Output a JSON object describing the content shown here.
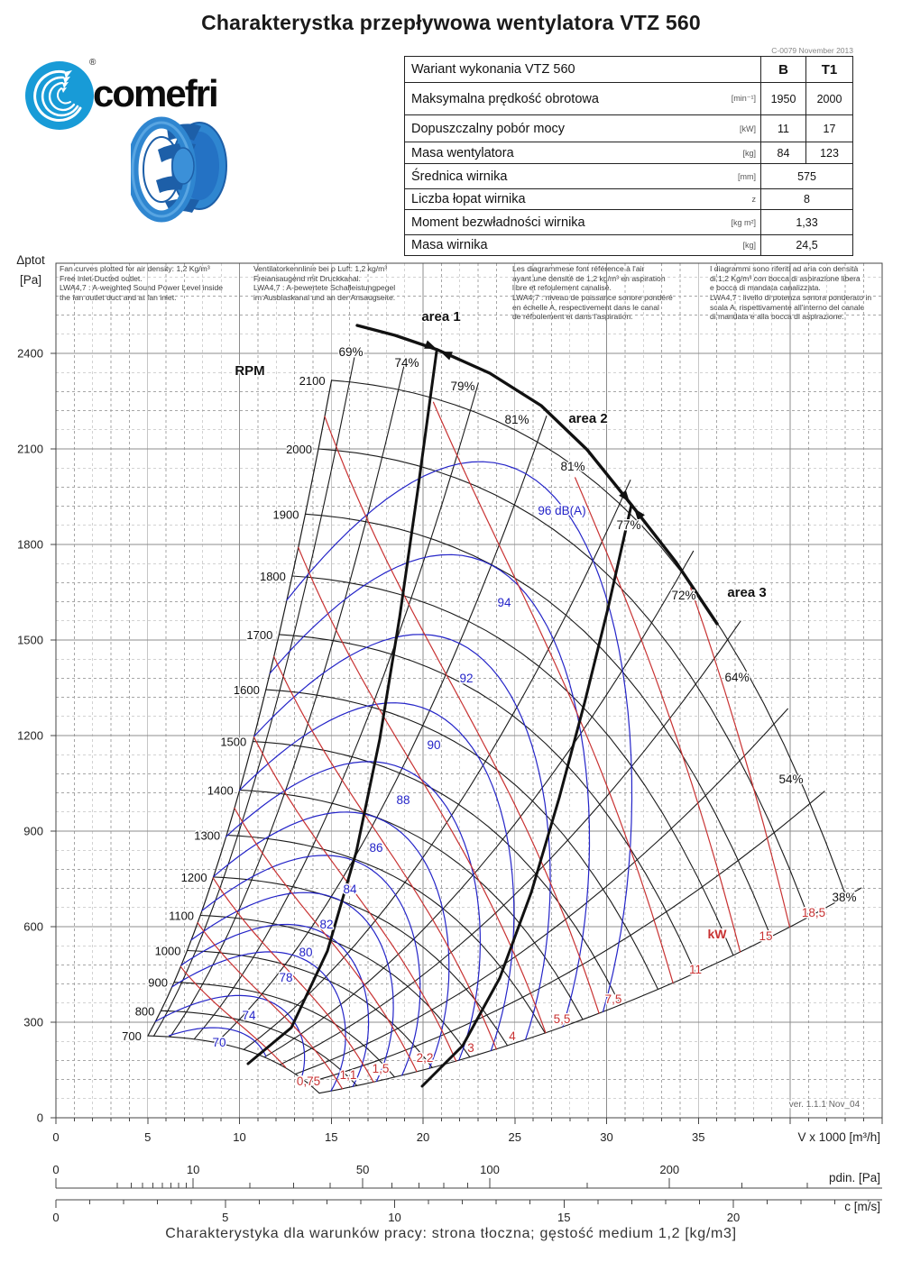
{
  "page": {
    "title": "Charakterystka przepływowa wentylatora VTZ 560",
    "doc_ref": "C-0079 November 2013",
    "footer": "Charakterystyka dla warunków pracy: strona tłoczna; gęstość medium 1,2 [kg/m3]"
  },
  "logo": {
    "brand": "comefri",
    "registered": "®"
  },
  "spec_table": {
    "rows": [
      {
        "name": "Wariant wykonania VTZ 560",
        "unit": "",
        "b": "B",
        "t1": "T1"
      },
      {
        "name": "Maksymalna prędkość obrotowa",
        "unit": "[min⁻¹]",
        "b": "1950",
        "t1": "2000"
      },
      {
        "name": "Dopuszczalny pobór mocy",
        "unit": "[kW]",
        "b": "11",
        "t1": "17"
      },
      {
        "name": "Masa wentylatora",
        "unit": "[kg]",
        "b": "84",
        "t1": "123"
      },
      {
        "name": "Średnica wirnika",
        "unit": "[mm]",
        "value": "575"
      },
      {
        "name": "Liczba łopat wirnika",
        "unit": "z",
        "value": "8"
      },
      {
        "name": "Moment bezwładności wirnika",
        "unit": "[kg m²]",
        "value": "1,33"
      },
      {
        "name": "Masa wirnika",
        "unit": "[kg]",
        "value": "24,5"
      }
    ]
  },
  "notes": {
    "en": {
      "lines": [
        "Fan curves plotted for air density: 1,2 Kg/m³",
        "Free inlet-Ducted outlet.",
        "LWA4,7 : A-weighted Sound Power Level inside",
        "the fan outlet duct and at fan inlet."
      ]
    },
    "de": {
      "lines": [
        "Ventilatorkennlinie bei ρ Luft: 1,2 kg/m³",
        "Freiansaugend mit Druckkanal.",
        "LWA4,7 : A-bewertete Schalleistungpegel",
        "im Ausblaskanal und an der Ansaugseite."
      ]
    },
    "fr": {
      "lines": [
        "Les diagrammese font référence à l'air",
        "ayant une densité de 1,2 kg/m³ en aspiration",
        "libre et refoulement canalisé.",
        "LWA4,7 : niveau de puissance sonore pondéré",
        "en échelle A, respectivement dans le canal",
        "de réfoulement et dans l'aspiration."
      ]
    },
    "it": {
      "lines": [
        "I diagrammi sono riferiti ad aria con densità",
        "di 1,2 Kg/m³ con bocca di aspirazione libera",
        "e bocca di mandata canalizzata.",
        "LWA4,7 : livello di potenza sonora ponderato in",
        "scala A, rispettivamente all'interno del canale",
        "di mandata e alla bocca di aspirazione."
      ]
    }
  },
  "chart_data": {
    "type": "fan-performance-map",
    "x_axis": {
      "label": "V x 1000 [m³/h]",
      "min": 0,
      "max": 45,
      "major_step": 5,
      "minor_step": 1,
      "labeled_ticks": [
        0,
        5,
        10,
        15,
        20,
        25,
        30,
        35
      ]
    },
    "y_axis": {
      "label": "Δptot",
      "unit": "[Pa]",
      "min": 0,
      "max": 2680,
      "major_step": 300,
      "minor_step": 60,
      "labeled_ticks": [
        0,
        300,
        600,
        900,
        1200,
        1500,
        1800,
        2100,
        2400
      ]
    },
    "pdin_axis": {
      "label": "pdin. [Pa]",
      "labeled_ticks": [
        0,
        10,
        50,
        100,
        200
      ],
      "minor_ticks": [
        2,
        3,
        4,
        5,
        6,
        7,
        8,
        9,
        20,
        30,
        40,
        60,
        70,
        80,
        90,
        150,
        250,
        300
      ]
    },
    "c_axis": {
      "label": "c [m/s]",
      "labeled_ticks": [
        0,
        5,
        10,
        15,
        20
      ],
      "minor_step": 1,
      "max": 24
    },
    "rpm_curves": {
      "header": "RPM",
      "values": [
        700,
        800,
        900,
        1000,
        1100,
        1200,
        1300,
        1400,
        1500,
        1600,
        1700,
        1800,
        1900,
        2000,
        2100
      ]
    },
    "efficiency_lines": {
      "labels": [
        "69%",
        "74%",
        "79%",
        "81%",
        "81%",
        "77%",
        "72%",
        "64%",
        "54%",
        "38%"
      ]
    },
    "noise_curves": {
      "unit": "dB(A)",
      "labels": [
        "70",
        "74",
        "78",
        "80",
        "82",
        "84",
        "86",
        "88",
        "90",
        "92",
        "94",
        "96 dB(A)"
      ]
    },
    "power_lines": {
      "header": "kW",
      "labels": [
        "0,75",
        "1,1",
        "1,5",
        "2,2",
        "3",
        "4",
        "5,5",
        "7,5",
        "11",
        "15",
        "18,5"
      ],
      "values_kw": [
        0.75,
        1.1,
        1.5,
        2.2,
        3,
        4,
        5.5,
        7.5,
        11,
        15,
        18.5
      ]
    },
    "area_labels": [
      "area 1",
      "area 2",
      "area 3"
    ],
    "version_note": "ver. 1.1.1 Nov_04",
    "colors": {
      "curve": "#1a1a1a",
      "noise": "#2424c8",
      "power": "#c83232",
      "grid_major": "#8c8c8c",
      "grid_minor": "#a6a6a6",
      "frame": "#444444"
    }
  }
}
